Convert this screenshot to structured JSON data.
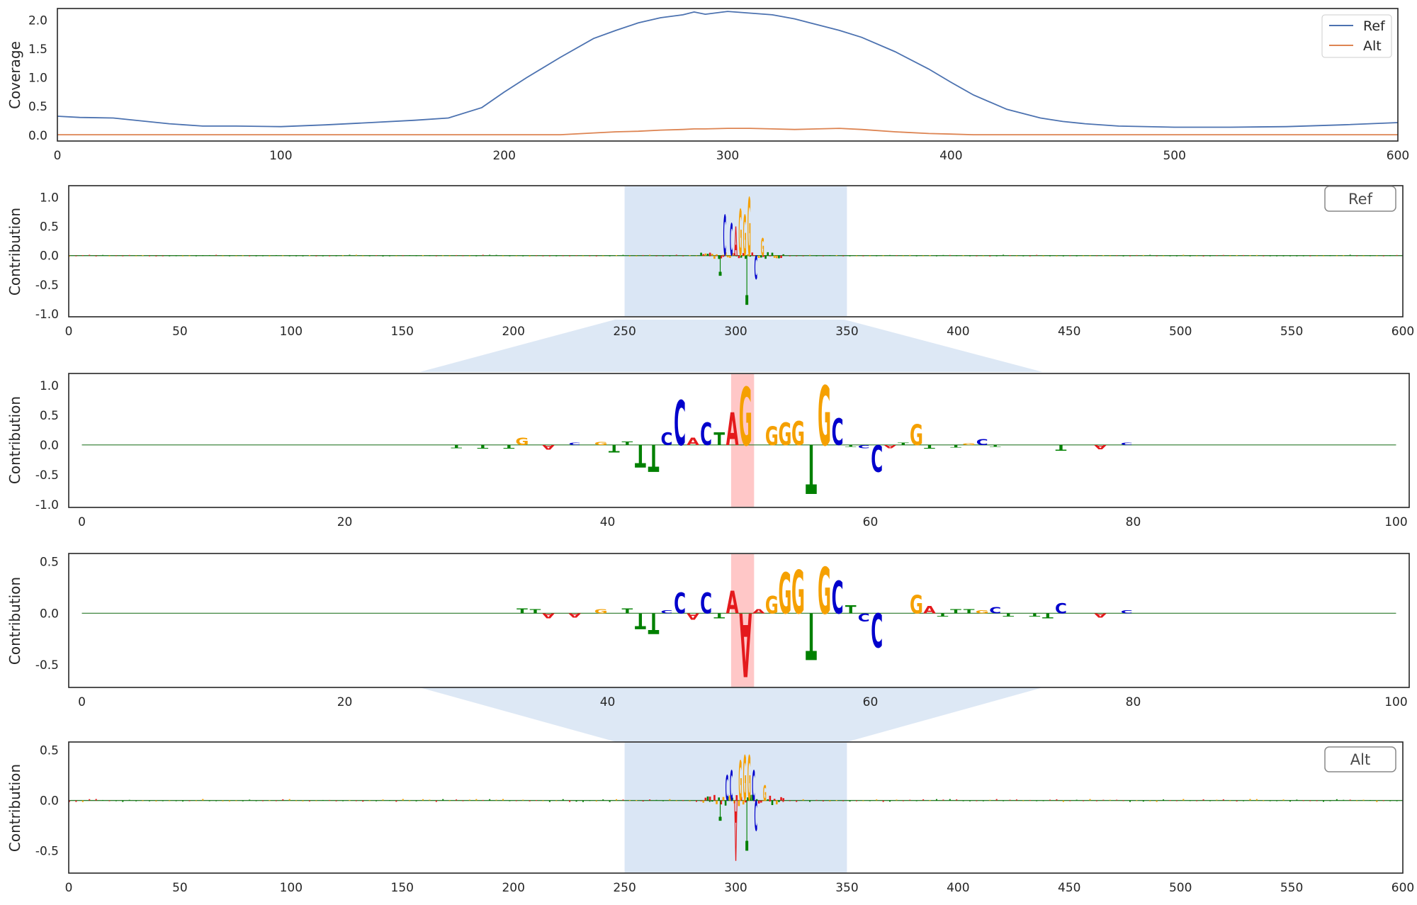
{
  "colors": {
    "ref_line": "#4c72b0",
    "alt_line": "#dd8452",
    "A": "#e41a1c",
    "C": "#0000cc",
    "G": "#f5a000",
    "T": "#008000",
    "window": "#c6d9ef",
    "variant": "#ff9999"
  },
  "chart_data": [
    {
      "name": "coverage",
      "type": "line",
      "xlim": [
        0,
        600
      ],
      "ylim": [
        -0.1,
        2.2
      ],
      "xticks": [
        "0",
        "100",
        "200",
        "300",
        "400",
        "500",
        "600"
      ],
      "yticks": [
        "0.0",
        "0.5",
        "1.0",
        "1.5",
        "2.0"
      ],
      "ylabel": "Coverage",
      "legend": {
        "placement": "top-right",
        "entries": [
          "Ref",
          "Alt"
        ]
      },
      "x": [
        0,
        10,
        25,
        50,
        65,
        80,
        100,
        120,
        140,
        160,
        175,
        190,
        200,
        210,
        225,
        240,
        250,
        260,
        270,
        280,
        285,
        290,
        300,
        310,
        320,
        330,
        340,
        350,
        360,
        375,
        390,
        400,
        410,
        425,
        440,
        450,
        460,
        475,
        500,
        525,
        550,
        575,
        600
      ],
      "series": [
        {
          "name": "Ref",
          "values": [
            0.33,
            0.31,
            0.3,
            0.2,
            0.16,
            0.16,
            0.15,
            0.18,
            0.22,
            0.26,
            0.3,
            0.48,
            0.75,
            1.0,
            1.35,
            1.68,
            1.82,
            1.95,
            2.04,
            2.09,
            2.14,
            2.1,
            2.15,
            2.12,
            2.09,
            2.02,
            1.92,
            1.82,
            1.7,
            1.45,
            1.15,
            0.92,
            0.7,
            0.45,
            0.3,
            0.24,
            0.2,
            0.16,
            0.14,
            0.14,
            0.15,
            0.18,
            0.22
          ]
        },
        {
          "name": "Alt",
          "values": [
            0.01,
            0.01,
            0.01,
            0.01,
            0.01,
            0.01,
            0.01,
            0.01,
            0.01,
            0.01,
            0.01,
            0.01,
            0.01,
            0.01,
            0.01,
            0.04,
            0.06,
            0.07,
            0.09,
            0.1,
            0.11,
            0.11,
            0.12,
            0.12,
            0.11,
            0.1,
            0.11,
            0.12,
            0.1,
            0.06,
            0.03,
            0.02,
            0.01,
            0.01,
            0.01,
            0.01,
            0.01,
            0.01,
            0.01,
            0.01,
            0.01,
            0.01,
            0.01
          ]
        }
      ]
    },
    {
      "name": "ref-contribution-full",
      "type": "sequence-logo",
      "xlim": [
        0,
        600
      ],
      "ylim": [
        -1.05,
        1.2
      ],
      "xticks": [
        "0",
        "50",
        "100",
        "150",
        "200",
        "250",
        "300",
        "350",
        "400",
        "450",
        "500",
        "550",
        "600"
      ],
      "yticks": [
        "1.0",
        "0.5",
        "0.0",
        "-0.5",
        "-1.0"
      ],
      "ylabel": "Contribution",
      "label": "Ref",
      "highlight": [
        250,
        350
      ],
      "peaks": [
        {
          "pos": 293,
          "base": "T",
          "value": -0.35
        },
        {
          "pos": 295,
          "base": "C",
          "value": 0.7
        },
        {
          "pos": 298,
          "base": "C",
          "value": 0.55
        },
        {
          "pos": 300,
          "base": "A",
          "value": 0.5
        },
        {
          "pos": 302,
          "base": "G",
          "value": 0.8
        },
        {
          "pos": 304,
          "base": "G",
          "value": 0.7
        },
        {
          "pos": 305,
          "base": "T",
          "value": -0.85
        },
        {
          "pos": 306,
          "base": "G",
          "value": 1.0
        },
        {
          "pos": 309,
          "base": "C",
          "value": -0.4
        },
        {
          "pos": 312,
          "base": "G",
          "value": 0.3
        }
      ]
    },
    {
      "name": "ref-contribution-zoom",
      "type": "sequence-logo",
      "xlim": [
        -1,
        101
      ],
      "ylim": [
        -1.05,
        1.2
      ],
      "xticks": [
        "0",
        "20",
        "40",
        "60",
        "80",
        "100"
      ],
      "yticks": [
        "1.0",
        "0.5",
        "0.0",
        "-0.5",
        "-1.0"
      ],
      "ylabel": "Contribution",
      "variant_position": 50,
      "letters": [
        {
          "pos": 28,
          "base": "T",
          "value": -0.05
        },
        {
          "pos": 30,
          "base": "T",
          "value": -0.06
        },
        {
          "pos": 32,
          "base": "T",
          "value": -0.06
        },
        {
          "pos": 33,
          "base": "G",
          "value": 0.12
        },
        {
          "pos": 35,
          "base": "A",
          "value": -0.08
        },
        {
          "pos": 37,
          "base": "C",
          "value": 0.04
        },
        {
          "pos": 39,
          "base": "G",
          "value": 0.05
        },
        {
          "pos": 40,
          "base": "T",
          "value": -0.12
        },
        {
          "pos": 41,
          "base": "T",
          "value": 0.06
        },
        {
          "pos": 42,
          "base": "T",
          "value": -0.38
        },
        {
          "pos": 43,
          "base": "T",
          "value": -0.45
        },
        {
          "pos": 44,
          "base": "C",
          "value": 0.22
        },
        {
          "pos": 45,
          "base": "C",
          "value": 0.75
        },
        {
          "pos": 46,
          "base": "A",
          "value": 0.12
        },
        {
          "pos": 47,
          "base": "C",
          "value": 0.38
        },
        {
          "pos": 48,
          "base": "T",
          "value": 0.22
        },
        {
          "pos": 49,
          "base": "A",
          "value": 0.55
        },
        {
          "pos": 50,
          "base": "G",
          "value": 0.98
        },
        {
          "pos": 52,
          "base": "G",
          "value": 0.32
        },
        {
          "pos": 53,
          "base": "G",
          "value": 0.38
        },
        {
          "pos": 54,
          "base": "G",
          "value": 0.4
        },
        {
          "pos": 55,
          "base": "T",
          "value": -0.82
        },
        {
          "pos": 56,
          "base": "G",
          "value": 1.0
        },
        {
          "pos": 57,
          "base": "C",
          "value": 0.45
        },
        {
          "pos": 58,
          "base": "T",
          "value": -0.03
        },
        {
          "pos": 59,
          "base": "C",
          "value": -0.05
        },
        {
          "pos": 60,
          "base": "C",
          "value": -0.45
        },
        {
          "pos": 61,
          "base": "A",
          "value": -0.05
        },
        {
          "pos": 62,
          "base": "T",
          "value": 0.04
        },
        {
          "pos": 63,
          "base": "G",
          "value": 0.35
        },
        {
          "pos": 64,
          "base": "T",
          "value": -0.06
        },
        {
          "pos": 66,
          "base": "T",
          "value": -0.04
        },
        {
          "pos": 67,
          "base": "G",
          "value": 0.03
        },
        {
          "pos": 68,
          "base": "C",
          "value": 0.1
        },
        {
          "pos": 69,
          "base": "T",
          "value": -0.03
        },
        {
          "pos": 74,
          "base": "T",
          "value": -0.09
        },
        {
          "pos": 77,
          "base": "A",
          "value": -0.07
        },
        {
          "pos": 79,
          "base": "C",
          "value": 0.04
        }
      ]
    },
    {
      "name": "alt-contribution-zoom",
      "type": "sequence-logo",
      "xlim": [
        -1,
        101
      ],
      "ylim": [
        -0.72,
        0.58
      ],
      "xticks": [
        "0",
        "20",
        "40",
        "60",
        "80",
        "100"
      ],
      "yticks": [
        "0.5",
        "0.0",
        "-0.5"
      ],
      "ylabel": "Contribution",
      "variant_position": 50,
      "letters": [
        {
          "pos": 33,
          "base": "T",
          "value": 0.05
        },
        {
          "pos": 34,
          "base": "T",
          "value": 0.04
        },
        {
          "pos": 35,
          "base": "A",
          "value": -0.05
        },
        {
          "pos": 37,
          "base": "A",
          "value": -0.04
        },
        {
          "pos": 39,
          "base": "G",
          "value": 0.04
        },
        {
          "pos": 41,
          "base": "T",
          "value": 0.05
        },
        {
          "pos": 42,
          "base": "T",
          "value": -0.15
        },
        {
          "pos": 43,
          "base": "T",
          "value": -0.2
        },
        {
          "pos": 44,
          "base": "C",
          "value": 0.03
        },
        {
          "pos": 45,
          "base": "C",
          "value": 0.2
        },
        {
          "pos": 46,
          "base": "A",
          "value": -0.06
        },
        {
          "pos": 47,
          "base": "C",
          "value": 0.2
        },
        {
          "pos": 48,
          "base": "T",
          "value": -0.05
        },
        {
          "pos": 49,
          "base": "A",
          "value": 0.22
        },
        {
          "pos": 50,
          "base": "A",
          "value": -0.62
        },
        {
          "pos": 51,
          "base": "A",
          "value": 0.04
        },
        {
          "pos": 52,
          "base": "G",
          "value": 0.17
        },
        {
          "pos": 53,
          "base": "G",
          "value": 0.4
        },
        {
          "pos": 54,
          "base": "G",
          "value": 0.42
        },
        {
          "pos": 55,
          "base": "T",
          "value": -0.45
        },
        {
          "pos": 56,
          "base": "G",
          "value": 0.45
        },
        {
          "pos": 57,
          "base": "C",
          "value": 0.32
        },
        {
          "pos": 58,
          "base": "T",
          "value": 0.08
        },
        {
          "pos": 59,
          "base": "C",
          "value": -0.08
        },
        {
          "pos": 60,
          "base": "C",
          "value": -0.33
        },
        {
          "pos": 63,
          "base": "G",
          "value": 0.18
        },
        {
          "pos": 64,
          "base": "A",
          "value": 0.07
        },
        {
          "pos": 65,
          "base": "T",
          "value": -0.03
        },
        {
          "pos": 66,
          "base": "T",
          "value": 0.04
        },
        {
          "pos": 67,
          "base": "T",
          "value": 0.04
        },
        {
          "pos": 68,
          "base": "G",
          "value": 0.03
        },
        {
          "pos": 69,
          "base": "C",
          "value": 0.06
        },
        {
          "pos": 70,
          "base": "T",
          "value": -0.03
        },
        {
          "pos": 72,
          "base": "T",
          "value": -0.03
        },
        {
          "pos": 73,
          "base": "T",
          "value": -0.05
        },
        {
          "pos": 74,
          "base": "C",
          "value": 0.1
        },
        {
          "pos": 77,
          "base": "A",
          "value": -0.04
        },
        {
          "pos": 79,
          "base": "C",
          "value": 0.03
        }
      ]
    },
    {
      "name": "alt-contribution-full",
      "type": "sequence-logo",
      "xlim": [
        0,
        600
      ],
      "ylim": [
        -0.72,
        0.58
      ],
      "xticks": [
        "0",
        "50",
        "100",
        "150",
        "200",
        "250",
        "300",
        "350",
        "400",
        "450",
        "500",
        "550",
        "600"
      ],
      "yticks": [
        "0.5",
        "0.0",
        "-0.5"
      ],
      "ylabel": "Contribution",
      "label": "Alt",
      "highlight": [
        250,
        350
      ],
      "peaks": [
        {
          "pos": 293,
          "base": "T",
          "value": -0.2
        },
        {
          "pos": 296,
          "base": "C",
          "value": 0.25
        },
        {
          "pos": 298,
          "base": "C",
          "value": 0.3
        },
        {
          "pos": 300,
          "base": "A",
          "value": -0.6
        },
        {
          "pos": 302,
          "base": "G",
          "value": 0.4
        },
        {
          "pos": 304,
          "base": "G",
          "value": 0.45
        },
        {
          "pos": 305,
          "base": "T",
          "value": -0.5
        },
        {
          "pos": 306,
          "base": "G",
          "value": 0.45
        },
        {
          "pos": 308,
          "base": "C",
          "value": 0.3
        },
        {
          "pos": 309,
          "base": "C",
          "value": -0.3
        },
        {
          "pos": 313,
          "base": "G",
          "value": 0.15
        }
      ]
    }
  ]
}
